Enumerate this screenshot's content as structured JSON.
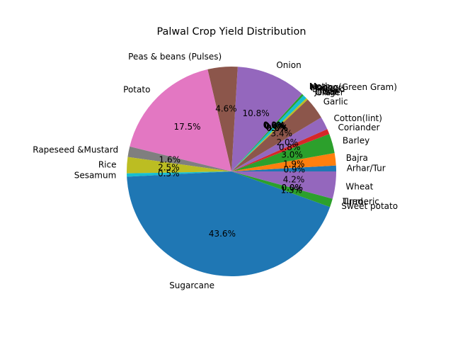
{
  "chart_data": {
    "type": "pie",
    "title": "Palwal Crop Yield Distribution",
    "autopct_min": 0.1,
    "slices": [
      {
        "label": "Arhar/Tur",
        "value": 0.9,
        "color": "#1f77b4"
      },
      {
        "label": "Bajra",
        "value": 1.9,
        "color": "#ff7f0e"
      },
      {
        "label": "Barley",
        "value": 3.0,
        "color": "#2ca02c"
      },
      {
        "label": "Coriander",
        "value": 0.8,
        "color": "#d62728"
      },
      {
        "label": "Cotton(lint)",
        "value": 2.0,
        "color": "#9467bd"
      },
      {
        "label": "Garlic",
        "value": 3.4,
        "color": "#8c564b"
      },
      {
        "label": "Ginger",
        "value": 0.0,
        "color": "#e377c2"
      },
      {
        "label": "Gram",
        "value": 0.0,
        "color": "#7f7f7f"
      },
      {
        "label": "Jowar",
        "value": 0.3,
        "color": "#bcbd22"
      },
      {
        "label": "Linseed",
        "value": 0.6,
        "color": "#17becf"
      },
      {
        "label": "Maize",
        "value": 0.0,
        "color": "#1f77b4"
      },
      {
        "label": "Masoor",
        "value": 0.0,
        "color": "#ff7f0e"
      },
      {
        "label": "Moong(Green Gram)",
        "value": 0.3,
        "color": "#2ca02c"
      },
      {
        "label": "Moth",
        "value": 0.0,
        "color": "#d62728"
      },
      {
        "label": "Onion",
        "value": 10.8,
        "color": "#9467bd"
      },
      {
        "label": "Peas & beans (Pulses)",
        "value": 4.6,
        "color": "#8c564b"
      },
      {
        "label": "Potato",
        "value": 17.5,
        "color": "#e377c2"
      },
      {
        "label": "Rapeseed &Mustard",
        "value": 1.6,
        "color": "#7f7f7f"
      },
      {
        "label": "Rice",
        "value": 2.5,
        "color": "#bcbd22"
      },
      {
        "label": "Sesamum",
        "value": 0.5,
        "color": "#17becf"
      },
      {
        "label": "Sugarcane",
        "value": 43.6,
        "color": "#1f77b4"
      },
      {
        "label": "Sweet potato",
        "value": 1.3,
        "color": "#2ca02c"
      },
      {
        "label": "Turmeric",
        "value": 0.0,
        "color": "#d62728"
      },
      {
        "label": "Urad",
        "value": 0.0,
        "color": "#9467bd"
      },
      {
        "label": "Wheat",
        "value": 4.2,
        "color": "#9467bd"
      }
    ]
  }
}
